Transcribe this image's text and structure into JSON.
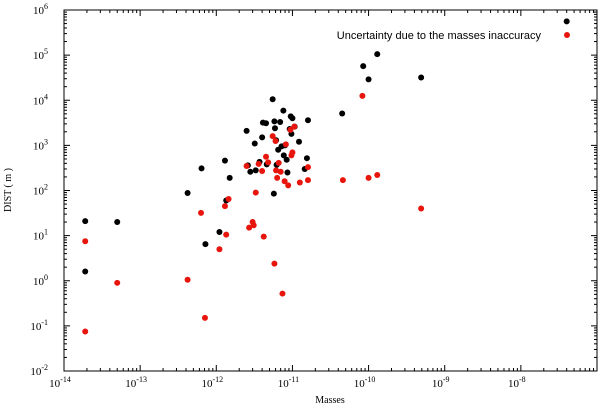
{
  "chart_data": {
    "type": "scatter",
    "xlabel": "Masses",
    "ylabel": "DIST ( m )",
    "xscale": "log",
    "yscale": "log",
    "xlim": [
      1e-14,
      1e-07
    ],
    "ylim": [
      0.01,
      1000000
    ],
    "grid": false,
    "legend_position": "top-right",
    "x_tick_labels": [
      "10",
      "10",
      "10",
      "10",
      "10",
      "10",
      "10",
      "10"
    ],
    "x_tick_exponents": [
      "-14",
      "-13",
      "-12",
      "-11",
      "-10",
      "-9",
      "-8",
      ""
    ],
    "y_tick_labels": [
      "10",
      "10",
      "10",
      "10",
      "10",
      "10",
      "10",
      "10",
      "10"
    ],
    "y_tick_exponents": [
      "-2",
      "-1",
      "0",
      "1",
      "2",
      "3",
      "4",
      "5",
      "6"
    ],
    "series": [
      {
        "name": "",
        "color": "#000000",
        "points": [
          [
            1.9e-14,
            21
          ],
          [
            1.9e-14,
            1.6
          ],
          [
            5e-14,
            20
          ],
          [
            4.2e-13,
            88
          ],
          [
            6.4e-13,
            310
          ],
          [
            7.2e-13,
            6.5
          ],
          [
            1.1e-12,
            12
          ],
          [
            1.3e-12,
            460
          ],
          [
            1.35e-12,
            60
          ],
          [
            1.5e-12,
            190
          ],
          [
            2.5e-12,
            2100
          ],
          [
            2.6e-12,
            360
          ],
          [
            2.8e-12,
            260
          ],
          [
            3.2e-12,
            1100
          ],
          [
            3.3e-12,
            280
          ],
          [
            3.7e-12,
            430
          ],
          [
            4e-12,
            1500
          ],
          [
            4.1e-12,
            3200
          ],
          [
            4.5e-12,
            3100
          ],
          [
            4.6e-12,
            380
          ],
          [
            5.5e-12,
            10500
          ],
          [
            5.7e-12,
            85
          ],
          [
            5.8e-12,
            3400
          ],
          [
            5.9e-12,
            2400
          ],
          [
            6.1e-12,
            1300
          ],
          [
            6.2e-12,
            370
          ],
          [
            6.5e-12,
            800
          ],
          [
            6.9e-12,
            3300
          ],
          [
            7.2e-12,
            950
          ],
          [
            7.6e-12,
            5900
          ],
          [
            7.7e-12,
            600
          ],
          [
            8e-12,
            1000
          ],
          [
            8.4e-12,
            480
          ],
          [
            8.6e-12,
            250
          ],
          [
            9.2e-12,
            2300
          ],
          [
            9.5e-12,
            4400
          ],
          [
            9.7e-12,
            1800
          ],
          [
            1e-11,
            4000
          ],
          [
            1.07e-11,
            2600
          ],
          [
            1.22e-11,
            1200
          ],
          [
            1.45e-11,
            300
          ],
          [
            1.55e-11,
            520
          ],
          [
            1.6e-11,
            3600
          ],
          [
            4.5e-11,
            5100
          ],
          [
            8.5e-11,
            57000
          ],
          [
            1e-10,
            29000
          ],
          [
            1.3e-10,
            105000
          ],
          [
            4.9e-10,
            32000
          ],
          [
            4e-08,
            560000
          ]
        ]
      },
      {
        "name": "Uncertainty due to the masses inaccuracy",
        "color": "#e8150c",
        "points": [
          [
            1.9e-14,
            7.5
          ],
          [
            1.9e-14,
            0.075
          ],
          [
            5e-14,
            0.9
          ],
          [
            4.2e-13,
            1.05
          ],
          [
            6.3e-13,
            32
          ],
          [
            7.1e-13,
            0.15
          ],
          [
            1.1e-12,
            5
          ],
          [
            1.3e-12,
            45
          ],
          [
            1.35e-12,
            10.5
          ],
          [
            1.45e-12,
            65
          ],
          [
            2.5e-12,
            350
          ],
          [
            2.7e-12,
            15
          ],
          [
            3e-12,
            20
          ],
          [
            3.1e-12,
            17
          ],
          [
            3.3e-12,
            90
          ],
          [
            3.6e-12,
            390
          ],
          [
            4e-12,
            270
          ],
          [
            4.2e-12,
            9.5
          ],
          [
            4.5e-12,
            560
          ],
          [
            4.8e-12,
            420
          ],
          [
            5.5e-12,
            1600
          ],
          [
            5.8e-12,
            2.4
          ],
          [
            6e-12,
            1250
          ],
          [
            6.1e-12,
            280
          ],
          [
            6.3e-12,
            190
          ],
          [
            6.6e-12,
            410
          ],
          [
            7e-12,
            260
          ],
          [
            7.4e-12,
            0.52
          ],
          [
            7.9e-12,
            160
          ],
          [
            8.2e-12,
            1050
          ],
          [
            8.8e-12,
            130
          ],
          [
            9.4e-12,
            2200
          ],
          [
            9.7e-12,
            600
          ],
          [
            1e-11,
            700
          ],
          [
            1.06e-11,
            2600
          ],
          [
            1.25e-11,
            150
          ],
          [
            1.6e-11,
            170
          ],
          [
            1.6e-11,
            330
          ],
          [
            4.6e-11,
            170
          ],
          [
            8.3e-11,
            12500
          ],
          [
            1e-10,
            190
          ],
          [
            1.3e-10,
            220
          ],
          [
            4.9e-10,
            40
          ]
        ]
      }
    ]
  }
}
